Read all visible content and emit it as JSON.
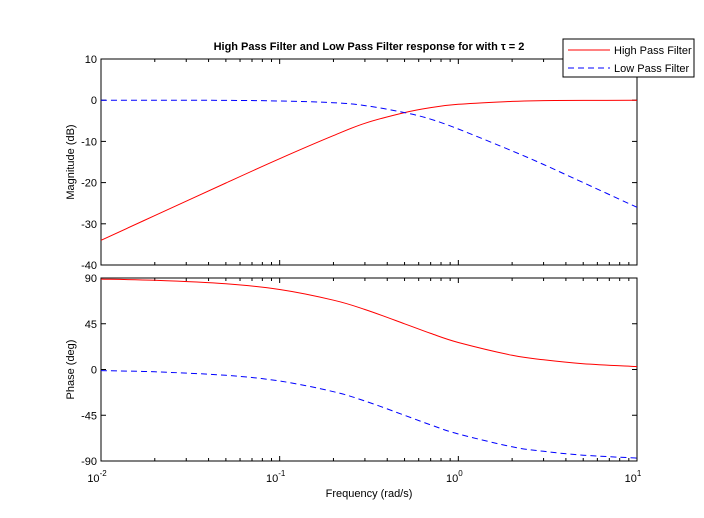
{
  "chart_data": [
    {
      "type": "line",
      "panel": "magnitude",
      "title": "High Pass Filter and Low Pass Filter response for with τ = 2",
      "xlabel": "",
      "ylabel": "Magnitude (dB)",
      "x_scale": "log",
      "xlim": [
        0.01,
        10
      ],
      "ylim": [
        -40,
        10
      ],
      "yticks": [
        10,
        0,
        -10,
        -20,
        -30,
        -40
      ],
      "ytick_labels": [
        "10",
        "0",
        "-10",
        "-20",
        "-30",
        "-40"
      ],
      "grid": false,
      "legend": "top-right",
      "series": [
        {
          "name": "High Pass Filter",
          "color": "#ff0000",
          "style": "solid",
          "x": [
            0.01,
            0.02,
            0.05,
            0.1,
            0.2,
            0.3,
            0.5,
            0.7,
            1,
            2,
            3,
            5,
            10
          ],
          "values": [
            -34.0,
            -28.0,
            -20.1,
            -14.2,
            -8.6,
            -5.6,
            -3.0,
            -1.8,
            -1.0,
            -0.3,
            -0.1,
            -0.04,
            -0.01
          ]
        },
        {
          "name": "Low Pass Filter",
          "color": "#0000ff",
          "style": "dashed",
          "x": [
            0.01,
            0.02,
            0.05,
            0.1,
            0.2,
            0.3,
            0.5,
            0.7,
            1,
            2,
            3,
            5,
            10
          ],
          "values": [
            0.0,
            0.0,
            -0.04,
            -0.2,
            -0.6,
            -1.3,
            -3.0,
            -4.6,
            -7.0,
            -12.3,
            -15.6,
            -20.0,
            -26.0
          ]
        }
      ]
    },
    {
      "type": "line",
      "panel": "phase",
      "title": "",
      "xlabel": "Frequency  (rad/s)",
      "ylabel": "Phase (deg)",
      "x_scale": "log",
      "xlim": [
        0.01,
        10
      ],
      "ylim": [
        -90,
        90
      ],
      "yticks": [
        90,
        45,
        0,
        -45,
        -90
      ],
      "ytick_labels": [
        "90",
        "45",
        "0",
        "-45",
        "-90"
      ],
      "xtick_base": "10",
      "xtick_exponents": [
        "-2",
        "-1",
        "0",
        "1"
      ],
      "grid": false,
      "series": [
        {
          "name": "High Pass Filter",
          "color": "#ff0000",
          "style": "solid",
          "x": [
            0.01,
            0.02,
            0.05,
            0.1,
            0.2,
            0.3,
            0.5,
            0.7,
            1,
            2,
            3,
            5,
            10
          ],
          "values": [
            88.9,
            87.7,
            84.3,
            78.7,
            68.2,
            59.0,
            45.0,
            35.5,
            26.6,
            14.0,
            9.5,
            5.7,
            2.9
          ]
        },
        {
          "name": "Low Pass Filter",
          "color": "#0000ff",
          "style": "dashed",
          "x": [
            0.01,
            0.02,
            0.05,
            0.1,
            0.2,
            0.3,
            0.5,
            0.7,
            1,
            2,
            3,
            5,
            10
          ],
          "values": [
            -1.1,
            -2.3,
            -5.7,
            -11.3,
            -21.8,
            -31.0,
            -45.0,
            -54.5,
            -63.4,
            -76.0,
            -80.5,
            -84.3,
            -87.1
          ]
        }
      ]
    }
  ]
}
